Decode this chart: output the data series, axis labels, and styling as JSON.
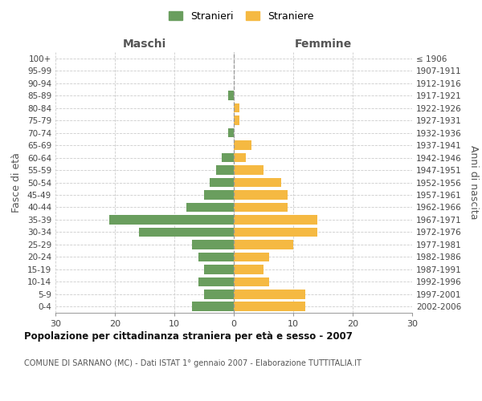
{
  "age_groups": [
    "100+",
    "95-99",
    "90-94",
    "85-89",
    "80-84",
    "75-79",
    "70-74",
    "65-69",
    "60-64",
    "55-59",
    "50-54",
    "45-49",
    "40-44",
    "35-39",
    "30-34",
    "25-29",
    "20-24",
    "15-19",
    "10-14",
    "5-9",
    "0-4"
  ],
  "birth_years": [
    "≤ 1906",
    "1907-1911",
    "1912-1916",
    "1917-1921",
    "1922-1926",
    "1927-1931",
    "1932-1936",
    "1937-1941",
    "1942-1946",
    "1947-1951",
    "1952-1956",
    "1957-1961",
    "1962-1966",
    "1967-1971",
    "1972-1976",
    "1977-1981",
    "1982-1986",
    "1987-1991",
    "1992-1996",
    "1997-2001",
    "2002-2006"
  ],
  "males": [
    0,
    0,
    0,
    1,
    0,
    0,
    1,
    0,
    2,
    3,
    4,
    5,
    8,
    21,
    16,
    7,
    6,
    5,
    6,
    5,
    7
  ],
  "females": [
    0,
    0,
    0,
    0,
    1,
    1,
    0,
    3,
    2,
    5,
    8,
    9,
    9,
    14,
    14,
    10,
    6,
    5,
    6,
    12,
    12
  ],
  "male_color": "#6a9e5e",
  "female_color": "#f5b942",
  "background_color": "#ffffff",
  "grid_color": "#cccccc",
  "bar_height": 0.75,
  "xlim": 30,
  "title": "Popolazione per cittadinanza straniera per età e sesso - 2007",
  "subtitle": "COMUNE DI SARNANO (MC) - Dati ISTAT 1° gennaio 2007 - Elaborazione TUTTITALIA.IT",
  "left_label": "Maschi",
  "right_label": "Femmine",
  "ylabel": "Fasce di età",
  "right_ylabel": "Anni di nascita",
  "legend_male": "Stranieri",
  "legend_female": "Straniere",
  "xticks": [
    -30,
    -20,
    -10,
    0,
    10,
    20,
    30
  ],
  "xtick_labels": [
    "30",
    "20",
    "10",
    "0",
    "10",
    "20",
    "30"
  ]
}
